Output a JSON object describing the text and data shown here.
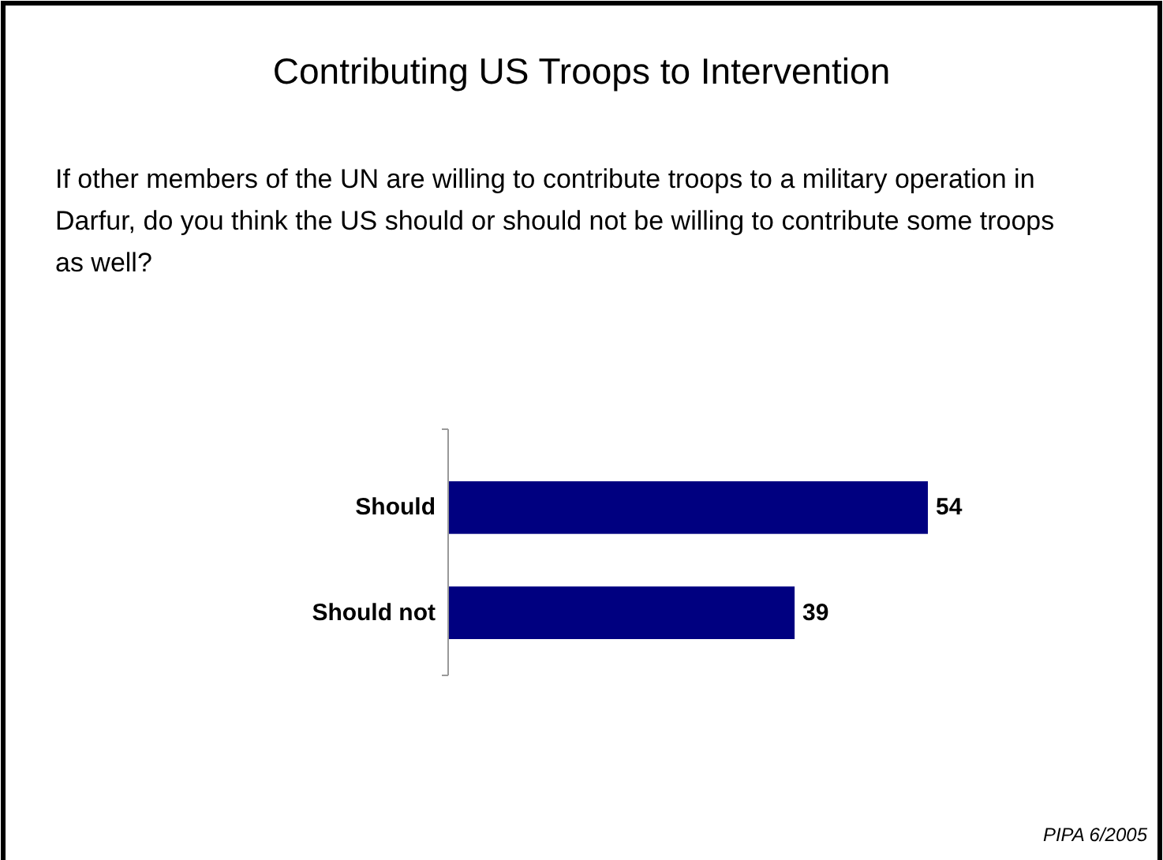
{
  "chart_data": {
    "type": "bar",
    "orientation": "horizontal",
    "title": "Contributing US Troops to Intervention",
    "subtitle": "If other members of the UN are willing to contribute troops to a military operation in Darfur, do you think the US should or should not be willing to contribute some troops as well?",
    "categories": [
      "Should",
      "Should not"
    ],
    "values": [
      54,
      39
    ],
    "color": "#000080",
    "data_labels": true,
    "annotations": [
      "PIPA 6/2005"
    ]
  }
}
